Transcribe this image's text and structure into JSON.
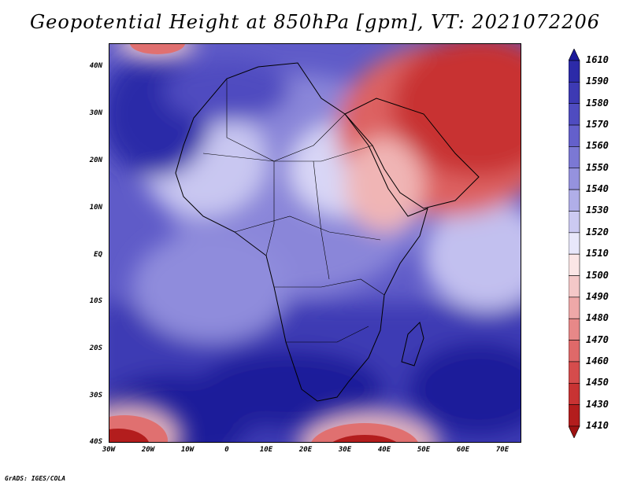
{
  "title": "Geopotential Height at 850hPa [gpm], VT: 2021072206",
  "credit": "GrADS: IGES/COLA",
  "map": {
    "lat_labels": [
      "40N",
      "30N",
      "20N",
      "10N",
      "EQ",
      "10S",
      "20S",
      "30S",
      "40S"
    ],
    "lon_labels": [
      "30W",
      "20W",
      "10W",
      "0",
      "10E",
      "20E",
      "30E",
      "40E",
      "50E",
      "60E",
      "70E"
    ]
  },
  "colorbar": {
    "levels": [
      1610,
      1590,
      1580,
      1570,
      1560,
      1550,
      1540,
      1530,
      1520,
      1510,
      1500,
      1490,
      1480,
      1470,
      1460,
      1450,
      1430,
      1410
    ],
    "colors": [
      "#1c1a9a",
      "#2c2aa8",
      "#3d3ab4",
      "#4f4cc0",
      "#6460cb",
      "#7b78d4",
      "#9592de",
      "#b0aee8",
      "#cccaf2",
      "#e8e7fa",
      "#fbe6e6",
      "#f4c8c8",
      "#eea8a8",
      "#e78888",
      "#df6969",
      "#d54c4c",
      "#c83333",
      "#b31d1d",
      "#9e1212"
    ]
  }
}
